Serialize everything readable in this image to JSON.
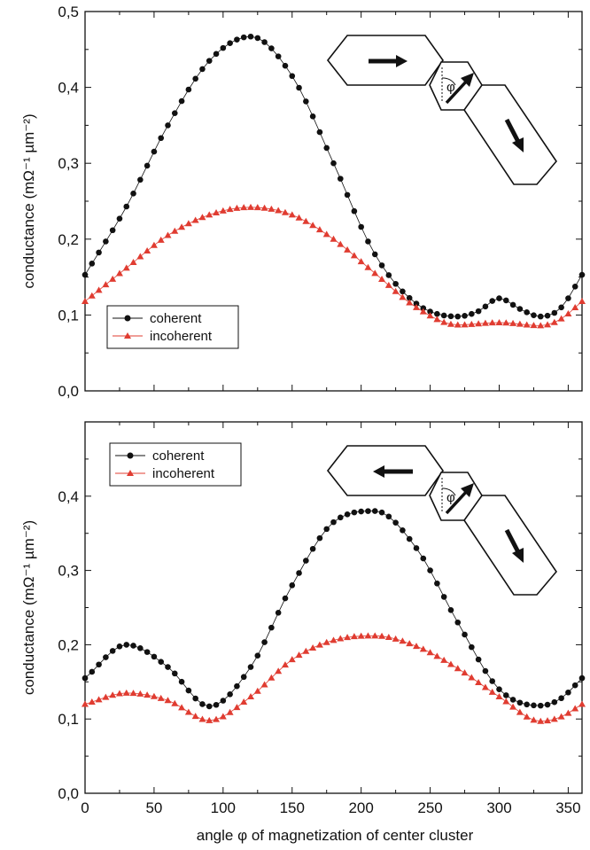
{
  "figure": {
    "xlabel": "angle φ of magnetization of center cluster"
  },
  "chart_data": [
    {
      "type": "scatter",
      "panel": "top",
      "xlim": [
        0,
        360
      ],
      "ylim": [
        0.0,
        0.5
      ],
      "xticks": [
        0,
        50,
        100,
        150,
        200,
        250,
        300,
        350
      ],
      "yticks": [
        0.0,
        0.1,
        0.2,
        0.3,
        0.4,
        0.5
      ],
      "ytick_labels": [
        "0,0",
        "0,1",
        "0,2",
        "0,3",
        "0,4",
        "0,5"
      ],
      "ylabel": "conductance (mΩ⁻¹ µm⁻²)",
      "legend": {
        "position": "lower-left",
        "entries": [
          "coherent",
          "incoherent"
        ]
      },
      "inset": {
        "left_arrow": "right",
        "center_label": "φ"
      },
      "series": [
        {
          "name": "coherent",
          "marker": "circle",
          "color": "#111111",
          "x": [
            0,
            30,
            60,
            90,
            120,
            150,
            180,
            210,
            240,
            270,
            285,
            300,
            315,
            330,
            345,
            360
          ],
          "values": [
            0.153,
            0.243,
            0.35,
            0.435,
            0.467,
            0.415,
            0.3,
            0.18,
            0.115,
            0.098,
            0.105,
            0.122,
            0.108,
            0.098,
            0.11,
            0.153
          ]
        },
        {
          "name": "incoherent",
          "marker": "triangle",
          "color": "#e03c31",
          "x": [
            0,
            30,
            60,
            90,
            120,
            150,
            180,
            210,
            240,
            270,
            300,
            330,
            345,
            360
          ],
          "values": [
            0.118,
            0.162,
            0.205,
            0.232,
            0.242,
            0.232,
            0.2,
            0.155,
            0.11,
            0.087,
            0.09,
            0.086,
            0.095,
            0.118
          ]
        }
      ]
    },
    {
      "type": "scatter",
      "panel": "bottom",
      "xlim": [
        0,
        360
      ],
      "ylim": [
        0.0,
        0.5
      ],
      "xticks": [
        0,
        50,
        100,
        150,
        200,
        250,
        300,
        350
      ],
      "xtick_labels": [
        "0",
        "50",
        "100",
        "150",
        "200",
        "250",
        "300",
        "350"
      ],
      "yticks": [
        0.0,
        0.1,
        0.2,
        0.3,
        0.4
      ],
      "ytick_labels": [
        "0,0",
        "0,1",
        "0,2",
        "0,3",
        "0,4"
      ],
      "ylabel": "conductance (mΩ⁻¹ µm⁻²)",
      "legend": {
        "position": "upper-left",
        "entries": [
          "coherent",
          "incoherent"
        ]
      },
      "inset": {
        "left_arrow": "left",
        "center_label": "φ"
      },
      "series": [
        {
          "name": "coherent",
          "marker": "circle",
          "color": "#111111",
          "x": [
            0,
            30,
            60,
            90,
            120,
            150,
            180,
            210,
            240,
            270,
            300,
            330,
            345,
            360
          ],
          "values": [
            0.155,
            0.2,
            0.17,
            0.117,
            0.17,
            0.28,
            0.365,
            0.38,
            0.33,
            0.23,
            0.14,
            0.118,
            0.128,
            0.155
          ]
        },
        {
          "name": "incoherent",
          "marker": "triangle",
          "color": "#e03c31",
          "x": [
            0,
            30,
            60,
            90,
            120,
            150,
            180,
            210,
            240,
            270,
            300,
            330,
            345,
            360
          ],
          "values": [
            0.12,
            0.135,
            0.125,
            0.098,
            0.13,
            0.18,
            0.206,
            0.212,
            0.198,
            0.168,
            0.13,
            0.097,
            0.103,
            0.12
          ]
        }
      ]
    }
  ]
}
